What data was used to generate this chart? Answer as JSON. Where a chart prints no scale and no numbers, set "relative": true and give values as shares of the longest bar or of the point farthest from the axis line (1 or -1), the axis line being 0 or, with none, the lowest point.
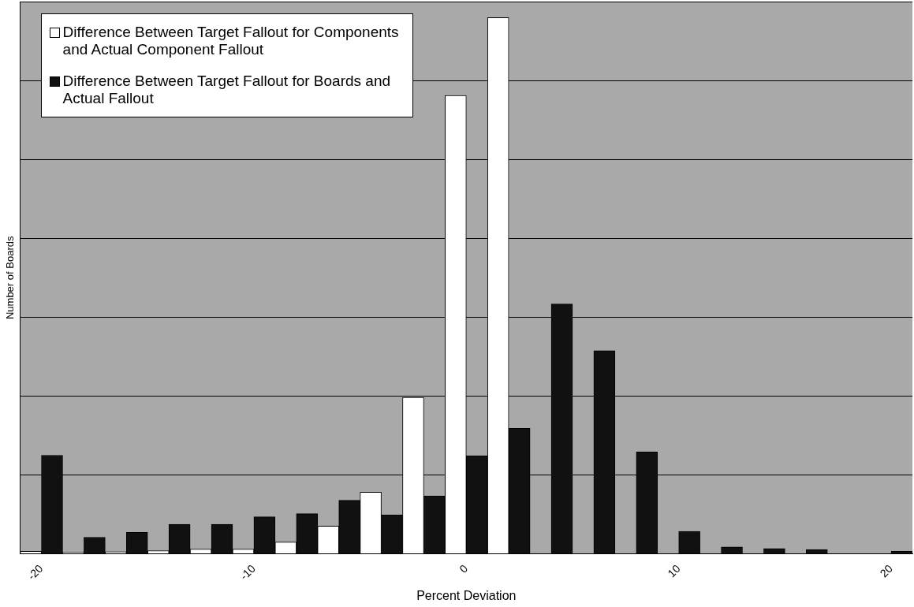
{
  "chart_data": {
    "type": "bar",
    "relative": true,
    "categories": [
      "-20",
      null,
      null,
      null,
      null,
      "-10",
      null,
      null,
      null,
      null,
      "0",
      null,
      null,
      null,
      null,
      "10",
      null,
      null,
      null,
      null,
      "20"
    ],
    "series": [
      {
        "name": "Difference Between Target Fallout for Components and Actual Component Fallout",
        "color": "#ffffff",
        "values": [
          0.005,
          0.003,
          0.004,
          0.006,
          0.009,
          0.009,
          0.022,
          0.052,
          0.115,
          0.292,
          0.855,
          1,
          0,
          0,
          0,
          0,
          0,
          0,
          0,
          0,
          0
        ]
      },
      {
        "name": "Difference Between Target Fallout for Boards and Actual Fallout",
        "color": "#111111",
        "values": [
          0.184,
          0.031,
          0.04,
          0.055,
          0.055,
          0.069,
          0.075,
          0.1,
          0.073,
          0.108,
          0.183,
          0.234,
          0.466,
          0.379,
          0.19,
          0.042,
          0.013,
          0.01,
          0.008,
          0,
          0.005
        ]
      }
    ],
    "xlabel": "Percent Deviation",
    "ylabel": "Number of Boards",
    "grid": "y",
    "legend": "top left"
  }
}
